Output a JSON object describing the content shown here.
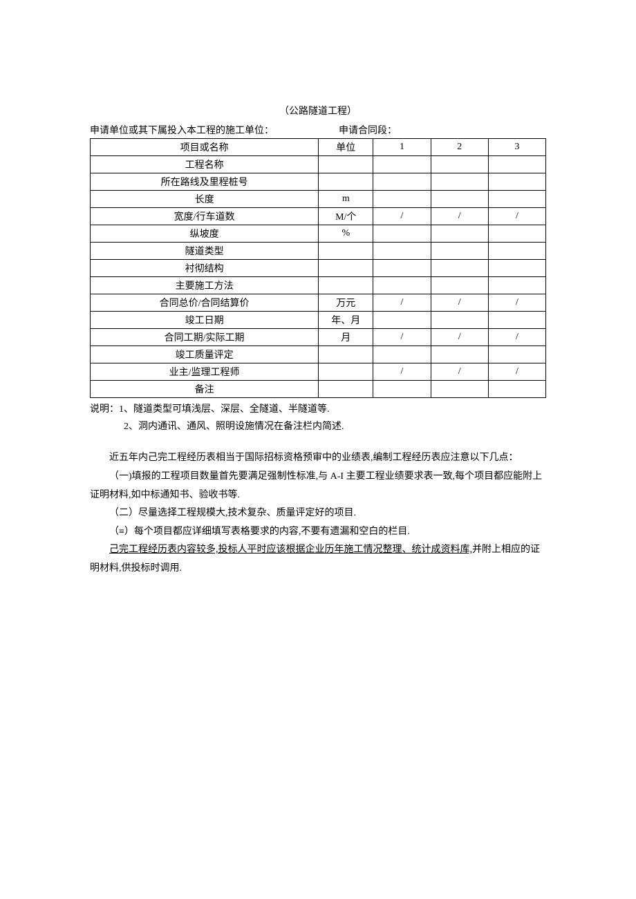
{
  "title": "（公路隧道工程）",
  "header": {
    "left": "申请单位或其下属投入本工程的施工单位：",
    "right": "申请合同段："
  },
  "table": {
    "columns": [
      "项目或名称",
      "单位",
      "1",
      "2",
      "3"
    ],
    "rows": [
      {
        "item": "工程名称",
        "unit": "",
        "c1": "",
        "c2": "",
        "c3": ""
      },
      {
        "item": "所在路线及里程桩号",
        "unit": "",
        "c1": "",
        "c2": "",
        "c3": ""
      },
      {
        "item": "长度",
        "unit": "m",
        "c1": "",
        "c2": "",
        "c3": ""
      },
      {
        "item": "宽度/行车道数",
        "unit": "M/个",
        "c1": "/",
        "c2": "/",
        "c3": "/"
      },
      {
        "item": "纵坡度",
        "unit": "%",
        "c1": "",
        "c2": "",
        "c3": ""
      },
      {
        "item": "隧道类型",
        "unit": "",
        "c1": "",
        "c2": "",
        "c3": ""
      },
      {
        "item": "衬彻结构",
        "unit": "",
        "c1": "",
        "c2": "",
        "c3": ""
      },
      {
        "item": "主要施工方法",
        "unit": "",
        "c1": "",
        "c2": "",
        "c3": ""
      },
      {
        "item": "合同总价/合同结算价",
        "unit": "万元",
        "c1": "/",
        "c2": "/",
        "c3": "/"
      },
      {
        "item": "竣工日期",
        "unit": "年、月",
        "c1": "",
        "c2": "",
        "c3": ""
      },
      {
        "item": "合同工期/实际工期",
        "unit": "月",
        "c1": "/",
        "c2": "/",
        "c3": "/"
      },
      {
        "item": "竣工质量评定",
        "unit": "",
        "c1": "",
        "c2": "",
        "c3": ""
      },
      {
        "item": "业主/监理工程师",
        "unit": "",
        "c1": "/",
        "c2": "/",
        "c3": "/"
      },
      {
        "item": "备注",
        "unit": "",
        "c1": "",
        "c2": "",
        "c3": ""
      }
    ]
  },
  "notes": {
    "label": "说明：",
    "line1": "1、隧道类型可填浅层、深层、全隧道、半隧道等.",
    "line2": "2、洞内通讯、通风、照明设施情况在备注栏内简述."
  },
  "paragraphs": {
    "p1": "近五年内己完工程经历表相当于国际招标资格预审中的业绩表,编制工程经历表应注意以下几点：",
    "p2": "（一)填报的工程项目数量首先要满足强制性标准,与 A-I 主要工程业绩要求表一致,每个项目都应能附上证明材料,如中标通知书、验收书等.",
    "p3": "（二）尽量选择工程规模大,技术复杂、质量评定好的项目.",
    "p4": "（≡）每个项目都应详细填写表格要求的内容,不要有遗漏和空白的栏目.",
    "p5a": "己完工程经历表内容较多,投标人平时应该根据企业历年施工情况整理、统计成资料库,",
    "p5b": "并附上相应的证明材料,供投标时调用."
  }
}
